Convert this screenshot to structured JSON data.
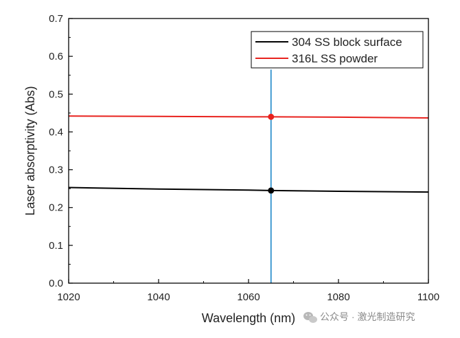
{
  "chart_data": {
    "type": "line",
    "title": "",
    "xlabel": "Wavelength (nm)",
    "ylabel": "Laser absorptivity (Abs)",
    "xlim": [
      1020,
      1100
    ],
    "ylim": [
      0.0,
      0.7
    ],
    "x_ticks": [
      1020,
      1040,
      1060,
      1080,
      1100
    ],
    "y_ticks": [
      0.0,
      0.1,
      0.2,
      0.3,
      0.4,
      0.5,
      0.6,
      0.7
    ],
    "x_tick_labels": [
      "1020",
      "1040",
      "1060",
      "1080",
      "1100"
    ],
    "y_tick_labels": [
      "0.0",
      "0.1",
      "0.2",
      "0.3",
      "0.4",
      "0.5",
      "0.6",
      "0.7"
    ],
    "legend_position": "top-right",
    "series": [
      {
        "name": "304 SS block surface",
        "color": "#000000",
        "x": [
          1020,
          1040,
          1060,
          1065,
          1080,
          1100
        ],
        "values": [
          0.253,
          0.249,
          0.246,
          0.245,
          0.243,
          0.241
        ]
      },
      {
        "name": "316L SS powder",
        "color": "#e8211d",
        "x": [
          1020,
          1040,
          1060,
          1065,
          1080,
          1100
        ],
        "values": [
          0.442,
          0.441,
          0.44,
          0.44,
          0.439,
          0.437
        ]
      }
    ],
    "marker_line": {
      "x": 1065,
      "y_top": 0.565,
      "color": "#1a86c8"
    },
    "markers": [
      {
        "x": 1065,
        "y": 0.44,
        "color": "#e8211d"
      },
      {
        "x": 1065,
        "y": 0.245,
        "color": "#000000"
      }
    ]
  },
  "watermark": {
    "icon": "wechat-icon",
    "text": "公众号 · 激光制造研究"
  }
}
